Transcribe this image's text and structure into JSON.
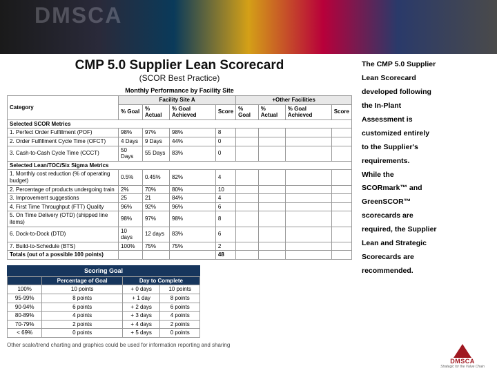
{
  "banner": {
    "ghost_text": "DMSCA"
  },
  "header": {
    "title": "CMP 5.0 Supplier Lean Scorecard",
    "subtitle": "(SCOR Best Practice)"
  },
  "perf_table": {
    "title": "Monthly Performance by Facility Site",
    "group_headers": [
      "Category",
      "Facility Site A",
      "+Other Facilities"
    ],
    "sub_headers": [
      "",
      "% Goal",
      "% Actual",
      "% Goal Achieved",
      "Score",
      "% Goal",
      "% Actual",
      "% Goal Achieved",
      "Score"
    ],
    "sections": [
      {
        "label": "Selected SCOR Metrics",
        "rows": [
          {
            "label": "1. Perfect Order Fulfillment (POF)",
            "cells": [
              "98%",
              "97%",
              "98%",
              "8",
              "",
              "",
              "",
              ""
            ]
          },
          {
            "label": "2. Order Fulfillment Cycle Time (OFCT)",
            "cells": [
              "4 Days",
              "9 Days",
              "44%",
              "0",
              "",
              "",
              "",
              ""
            ]
          },
          {
            "label": "3. Cash-to-Cash Cycle Time (CCCT)",
            "cells": [
              "50 Days",
              "55 Days",
              "83%",
              "0",
              "",
              "",
              "",
              ""
            ]
          }
        ]
      },
      {
        "label": "Selected Lean/TOC/Six Sigma Metrics",
        "rows": [
          {
            "label": "1. Monthly cost reduction (% of operating budget)",
            "cells": [
              "0.5%",
              "0.45%",
              "82%",
              "4",
              "",
              "",
              "",
              ""
            ]
          },
          {
            "label": "2. Percentage of products undergoing train",
            "cells": [
              "2%",
              "70%",
              "80%",
              "10",
              "",
              "",
              "",
              ""
            ]
          },
          {
            "label": "3. Improvement suggestions",
            "cells": [
              "25",
              "21",
              "84%",
              "4",
              "",
              "",
              "",
              ""
            ]
          },
          {
            "label": "4. First Time Throughput (FTT) Quality",
            "cells": [
              "96%",
              "92%",
              "96%",
              "6",
              "",
              "",
              "",
              ""
            ]
          },
          {
            "label": "5. On Time Delivery (OTD) (shipped line items)",
            "cells": [
              "98%",
              "97%",
              "98%",
              "8",
              "",
              "",
              "",
              ""
            ]
          },
          {
            "label": "6. Dock-to-Dock (DTD)",
            "cells": [
              "10 days",
              "12 days",
              "83%",
              "6",
              "",
              "",
              "",
              ""
            ]
          },
          {
            "label": "7. Build-to-Schedule (BTS)",
            "cells": [
              "100%",
              "75%",
              "75%",
              "2",
              "",
              "",
              "",
              ""
            ]
          }
        ]
      }
    ],
    "totals": {
      "label": "Totals (out of a possible 100 points)",
      "cells": [
        "",
        "",
        "",
        "48",
        "",
        "",
        "",
        ""
      ]
    }
  },
  "scoring": {
    "header": "Scoring Goal",
    "col_headers": [
      "",
      "Percentage of Goal",
      "Day to Complete"
    ],
    "rows": [
      [
        "100%",
        "10 points",
        "+ 0 days",
        "10 points"
      ],
      [
        "95-99%",
        "8 points",
        "+ 1 day",
        "8 points"
      ],
      [
        "90-94%",
        "6 points",
        "+ 2 days",
        "6 points"
      ],
      [
        "80-89%",
        "4 points",
        "+ 3 days",
        "4 points"
      ],
      [
        "70-79%",
        "2 points",
        "+ 4 days",
        "2 points"
      ],
      [
        "< 69%",
        "0 points",
        "+ 5 days",
        "0 points"
      ]
    ]
  },
  "footnote": "Other scale/trend charting and graphics could be used for information reporting and sharing",
  "side": [
    "The CMP 5.0 Supplier",
    "Lean Scorecard",
    "developed following",
    "the In-Plant",
    "Assessment is",
    "customized entirely",
    "to the Supplier's",
    "requirements.",
    "While the",
    "SCORmark™ and",
    "GreenSCOR™",
    "scorecards are",
    "required, the Supplier",
    "Lean and Strategic",
    "Scorecards are",
    "recommended."
  ],
  "logo": {
    "text": "DMSCA",
    "tag": "Strategic for the Value Chain"
  }
}
